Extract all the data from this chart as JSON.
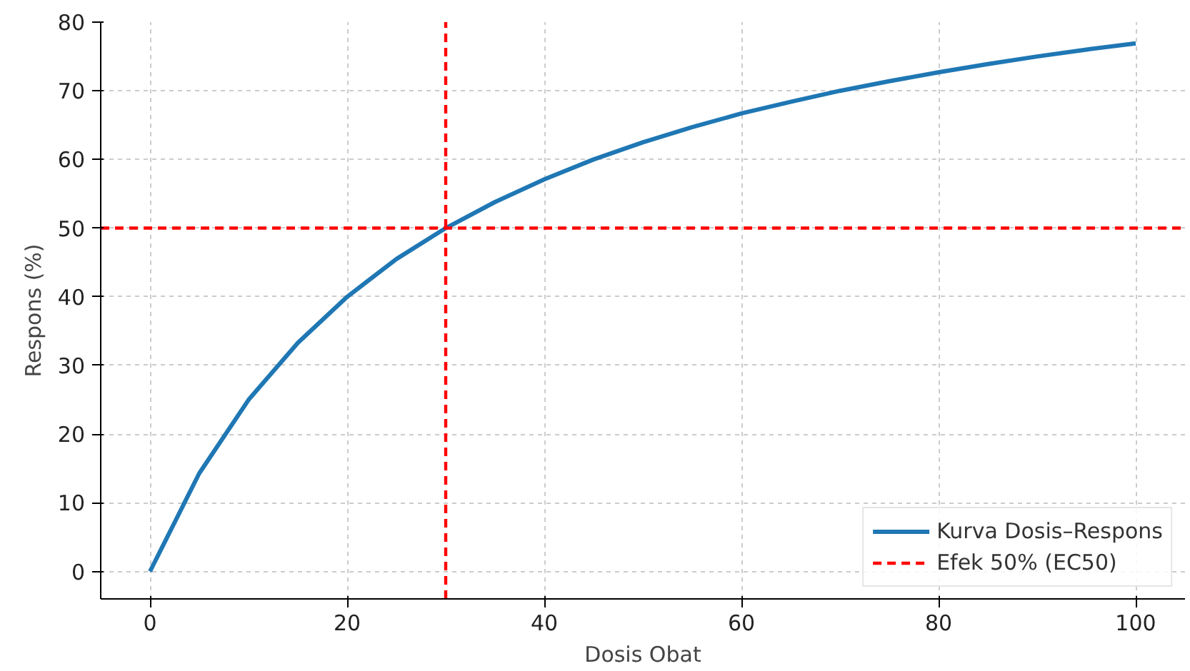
{
  "chart_data": {
    "type": "line",
    "xlabel": "Dosis Obat",
    "ylabel": "Respons (%)",
    "x": [
      0,
      5,
      10,
      15,
      20,
      25,
      30,
      35,
      40,
      45,
      50,
      55,
      60,
      65,
      70,
      75,
      80,
      85,
      90,
      95,
      100
    ],
    "series": [
      {
        "name": "Kurva Dosis–Respons",
        "color": "#1f77b4",
        "values": [
          0,
          14.3,
          25,
          33.3,
          40,
          45.5,
          50,
          53.8,
          57.1,
          60,
          62.5,
          64.7,
          66.7,
          68.4,
          70,
          71.4,
          72.7,
          73.9,
          75,
          76,
          76.9
        ]
      }
    ],
    "ref_lines": [
      {
        "axis": "x",
        "value": 30,
        "label": null,
        "color": "#ff0000",
        "line_style": "dashed"
      },
      {
        "axis": "y",
        "value": 50,
        "label": "Efek 50% (EC50)",
        "color": "#ff0000",
        "line_style": "dashed"
      }
    ],
    "xlim": [
      -5,
      105
    ],
    "ylim": [
      -4,
      80
    ],
    "xticks": [
      0,
      20,
      40,
      60,
      80,
      100
    ],
    "yticks": [
      0,
      10,
      20,
      30,
      40,
      50,
      60,
      70,
      80
    ],
    "grid": true,
    "legend": "bottom right",
    "line_style": "solid",
    "marker": "none"
  }
}
